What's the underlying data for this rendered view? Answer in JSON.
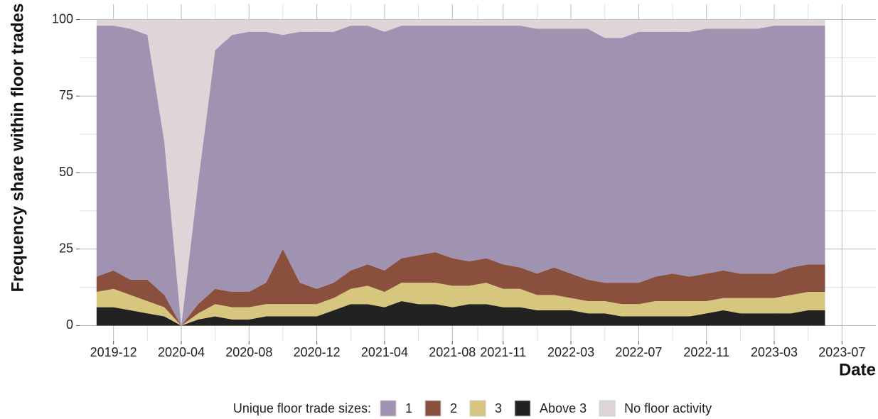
{
  "chart_data": {
    "type": "stacked_area",
    "y_label": "Frequency share within floor trades",
    "x_label": "Date",
    "legend_title": "Unique floor trade sizes:",
    "legend": "bottom",
    "grid": true,
    "x": [
      "2019-11",
      "2019-12",
      "2020-01",
      "2020-02",
      "2020-03",
      "2020-04",
      "2020-05",
      "2020-06",
      "2020-07",
      "2020-08",
      "2020-09",
      "2020-10",
      "2020-11",
      "2020-12",
      "2021-01",
      "2021-02",
      "2021-03",
      "2021-04",
      "2021-05",
      "2021-06",
      "2021-07",
      "2021-08",
      "2021-09",
      "2021-10",
      "2021-11",
      "2021-12",
      "2022-01",
      "2022-02",
      "2022-03",
      "2022-04",
      "2022-05",
      "2022-06",
      "2022-07",
      "2022-08",
      "2022-09",
      "2022-10",
      "2022-11",
      "2022-12",
      "2023-01",
      "2023-02",
      "2023-03",
      "2023-04",
      "2023-05",
      "2023-06"
    ],
    "xlim": [
      "2019-10",
      "2023-09"
    ],
    "xticks": [
      "2019-12",
      "2020-04",
      "2020-08",
      "2020-12",
      "2021-04",
      "2021-08",
      "2021-11",
      "2022-03",
      "2022-07",
      "2022-11",
      "2023-03",
      "2023-07"
    ],
    "ylim": [
      -5,
      105
    ],
    "yticks": [
      0,
      25,
      50,
      75,
      100
    ],
    "series": [
      {
        "name": "Above 3",
        "color": "#222222",
        "values": [
          6,
          6,
          5,
          4,
          3,
          0,
          2,
          3,
          2,
          2,
          3,
          3,
          3,
          3,
          5,
          7,
          7,
          6,
          8,
          7,
          7,
          6,
          7,
          7,
          6,
          6,
          5,
          5,
          5,
          4,
          4,
          3,
          3,
          3,
          3,
          3,
          4,
          5,
          4,
          4,
          4,
          4,
          5,
          5
        ]
      },
      {
        "name": "3",
        "color": "#d6c67e",
        "values": [
          5,
          6,
          5,
          4,
          3,
          0,
          2,
          4,
          4,
          4,
          4,
          4,
          4,
          4,
          4,
          5,
          6,
          5,
          6,
          7,
          7,
          7,
          6,
          7,
          6,
          6,
          5,
          5,
          4,
          4,
          4,
          4,
          4,
          5,
          5,
          5,
          4,
          4,
          5,
          5,
          5,
          6,
          6,
          6
        ]
      },
      {
        "name": "2",
        "color": "#8b4f3d",
        "values": [
          5,
          6,
          5,
          7,
          4,
          0,
          3,
          5,
          5,
          5,
          7,
          18,
          7,
          5,
          5,
          6,
          7,
          7,
          8,
          9,
          10,
          9,
          8,
          8,
          8,
          7,
          7,
          9,
          8,
          7,
          6,
          7,
          7,
          8,
          9,
          8,
          9,
          9,
          8,
          8,
          8,
          9,
          9,
          9
        ]
      },
      {
        "name": "1",
        "color": "#a093b2",
        "values": [
          82,
          80,
          82,
          80,
          50,
          0,
          40,
          78,
          84,
          85,
          82,
          70,
          82,
          84,
          82,
          80,
          78,
          78,
          76,
          75,
          74,
          76,
          77,
          76,
          78,
          79,
          80,
          78,
          80,
          82,
          80,
          80,
          82,
          80,
          79,
          80,
          80,
          79,
          80,
          80,
          81,
          79,
          78,
          78
        ]
      },
      {
        "name": "No floor activity",
        "color": "#ddd5d8",
        "values": [
          2,
          2,
          3,
          5,
          40,
          100,
          53,
          10,
          5,
          4,
          4,
          5,
          4,
          4,
          4,
          2,
          2,
          4,
          2,
          2,
          2,
          2,
          2,
          2,
          2,
          2,
          3,
          3,
          3,
          3,
          6,
          6,
          4,
          4,
          4,
          4,
          3,
          3,
          3,
          3,
          2,
          2,
          2,
          2
        ]
      }
    ]
  }
}
